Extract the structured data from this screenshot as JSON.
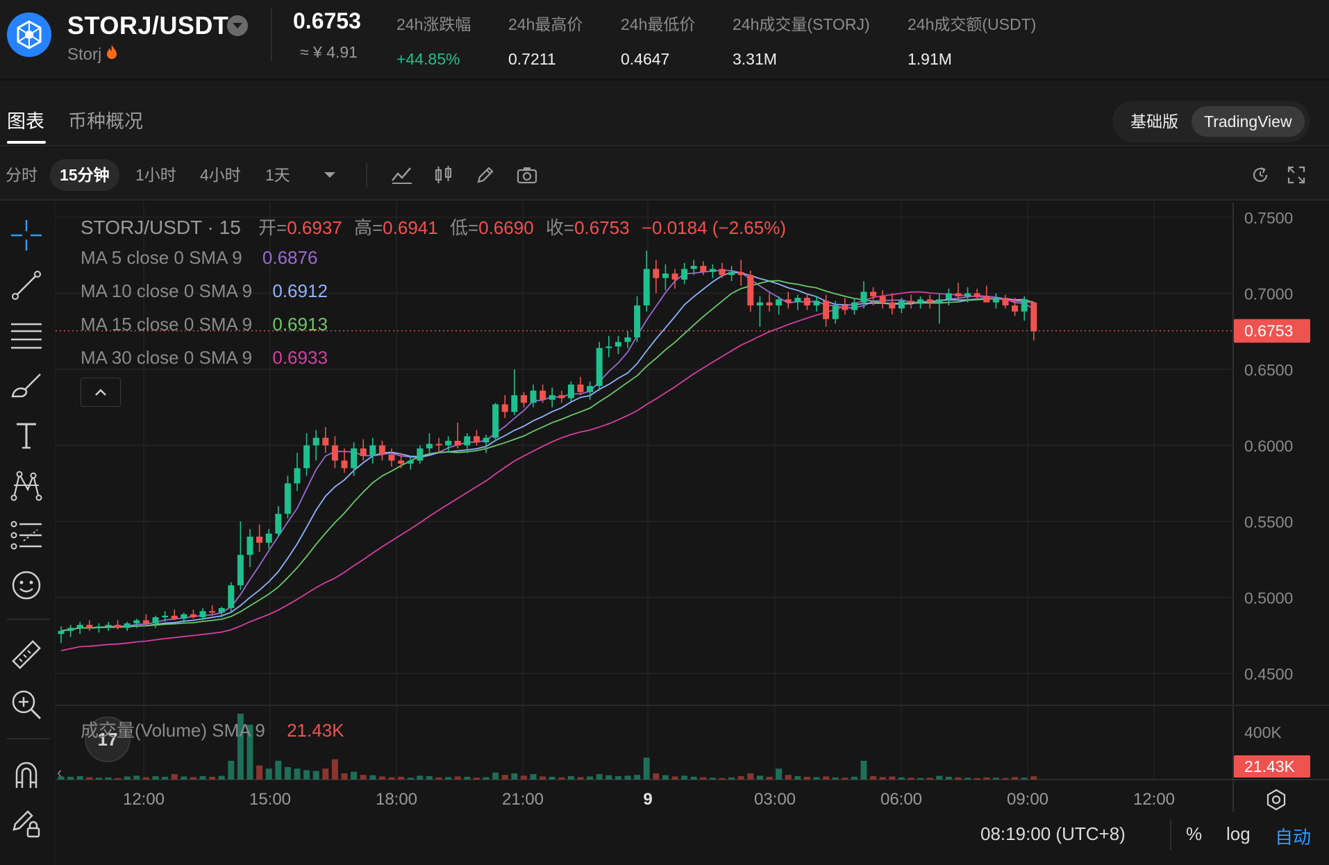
{
  "header": {
    "pair": "STORJ/USDT",
    "coin_name": "Storj",
    "hot_icon": "fire-icon",
    "last_price": "0.6753",
    "last_price_cny": "≈ ¥ 4.91",
    "stats": [
      {
        "label": "24h涨跌幅",
        "value": "+44.85%",
        "color": "#1fc08d"
      },
      {
        "label": "24h最高价",
        "value": "0.7211"
      },
      {
        "label": "24h最低价",
        "value": "0.4647"
      },
      {
        "label": "24h成交量(STORJ)",
        "value": "3.31M"
      },
      {
        "label": "24h成交额(USDT)",
        "value": "1.91M"
      }
    ]
  },
  "tabs": {
    "chart": "图表",
    "overview": "币种概况",
    "mode_basic": "基础版",
    "mode_tv": "TradingView"
  },
  "toolbar": {
    "intervals": [
      "分时",
      "15分钟",
      "1小时",
      "4小时",
      "1天"
    ],
    "active_interval": "15分钟",
    "icons": [
      "indicator-icon",
      "chart-type-icon",
      "draw-icon",
      "camera-icon",
      "refresh-icon",
      "fullscreen-icon"
    ]
  },
  "legend": {
    "symbol": "STORJ/USDT · 15",
    "ohlc_labels": {
      "open": "开=",
      "high": "高=",
      "low": "低=",
      "close": "收="
    },
    "ohlc_values": {
      "open": "0.6937",
      "high": "0.6941",
      "low": "0.6690",
      "close": "0.6753"
    },
    "change": "−0.0184 (−2.65%)",
    "ma": [
      {
        "label": "MA 5 close 0 SMA 9",
        "value": "0.6876",
        "color": "#9a6bd6"
      },
      {
        "label": "MA 10 close 0 SMA 9",
        "value": "0.6912",
        "color": "#8fb4ff"
      },
      {
        "label": "MA 15 close 0 SMA 9",
        "value": "0.6913",
        "color": "#6bc96b"
      },
      {
        "label": "MA 30 close 0 SMA 9",
        "value": "0.6933",
        "color": "#d63fa0"
      }
    ],
    "volume_label": "成交量(Volume) SMA 9",
    "volume_value": "21.43K"
  },
  "bottom": {
    "time": "08:19:00 (UTC+8)",
    "percent": "%",
    "log": "log",
    "auto": "自动"
  },
  "colors": {
    "up": "#26a69a",
    "up_bright": "#1fc08d",
    "down": "#ef5350",
    "bg": "#161616"
  },
  "chart_data": {
    "type": "candlestick",
    "symbol": "STORJ/USDT",
    "interval": "15",
    "ylim": [
      0.43,
      0.76
    ],
    "y_ticks": [
      "0.7500",
      "0.7000",
      "0.6500",
      "0.6000",
      "0.5500",
      "0.5000",
      "0.4500"
    ],
    "x_tick_labels": [
      "12:00",
      "15:00",
      "18:00",
      "21:00",
      "9",
      "03:00",
      "06:00",
      "09:00",
      "12:00"
    ],
    "last_price_label": "0.6753",
    "volume_axis_labels": [
      "400K"
    ],
    "volume_last_label": "21.43K",
    "candles": [
      {
        "o": 0.476,
        "h": 0.481,
        "l": 0.47,
        "c": 0.478,
        "v": 20
      },
      {
        "o": 0.478,
        "h": 0.482,
        "l": 0.474,
        "c": 0.48,
        "v": 18
      },
      {
        "o": 0.48,
        "h": 0.484,
        "l": 0.476,
        "c": 0.482,
        "v": 22
      },
      {
        "o": 0.482,
        "h": 0.485,
        "l": 0.478,
        "c": 0.48,
        "v": 15
      },
      {
        "o": 0.48,
        "h": 0.483,
        "l": 0.477,
        "c": 0.481,
        "v": 12
      },
      {
        "o": 0.481,
        "h": 0.484,
        "l": 0.478,
        "c": 0.482,
        "v": 14
      },
      {
        "o": 0.482,
        "h": 0.485,
        "l": 0.479,
        "c": 0.48,
        "v": 10
      },
      {
        "o": 0.48,
        "h": 0.484,
        "l": 0.478,
        "c": 0.483,
        "v": 20
      },
      {
        "o": 0.483,
        "h": 0.486,
        "l": 0.48,
        "c": 0.485,
        "v": 25
      },
      {
        "o": 0.485,
        "h": 0.489,
        "l": 0.481,
        "c": 0.483,
        "v": 15
      },
      {
        "o": 0.483,
        "h": 0.488,
        "l": 0.48,
        "c": 0.487,
        "v": 22
      },
      {
        "o": 0.487,
        "h": 0.491,
        "l": 0.484,
        "c": 0.488,
        "v": 18
      },
      {
        "o": 0.488,
        "h": 0.492,
        "l": 0.485,
        "c": 0.486,
        "v": 35
      },
      {
        "o": 0.486,
        "h": 0.49,
        "l": 0.483,
        "c": 0.489,
        "v": 20
      },
      {
        "o": 0.489,
        "h": 0.492,
        "l": 0.486,
        "c": 0.487,
        "v": 16
      },
      {
        "o": 0.487,
        "h": 0.493,
        "l": 0.485,
        "c": 0.491,
        "v": 22
      },
      {
        "o": 0.491,
        "h": 0.495,
        "l": 0.488,
        "c": 0.49,
        "v": 18
      },
      {
        "o": 0.49,
        "h": 0.494,
        "l": 0.487,
        "c": 0.493,
        "v": 24
      },
      {
        "o": 0.493,
        "h": 0.51,
        "l": 0.49,
        "c": 0.508,
        "v": 120
      },
      {
        "o": 0.508,
        "h": 0.55,
        "l": 0.505,
        "c": 0.528,
        "v": 420
      },
      {
        "o": 0.528,
        "h": 0.545,
        "l": 0.52,
        "c": 0.54,
        "v": 350
      },
      {
        "o": 0.54,
        "h": 0.548,
        "l": 0.53,
        "c": 0.536,
        "v": 90
      },
      {
        "o": 0.536,
        "h": 0.545,
        "l": 0.532,
        "c": 0.542,
        "v": 70
      },
      {
        "o": 0.542,
        "h": 0.56,
        "l": 0.54,
        "c": 0.555,
        "v": 120
      },
      {
        "o": 0.555,
        "h": 0.58,
        "l": 0.552,
        "c": 0.575,
        "v": 80
      },
      {
        "o": 0.575,
        "h": 0.595,
        "l": 0.57,
        "c": 0.585,
        "v": 70
      },
      {
        "o": 0.585,
        "h": 0.608,
        "l": 0.58,
        "c": 0.6,
        "v": 60
      },
      {
        "o": 0.6,
        "h": 0.61,
        "l": 0.59,
        "c": 0.605,
        "v": 55
      },
      {
        "o": 0.605,
        "h": 0.612,
        "l": 0.595,
        "c": 0.6,
        "v": 70
      },
      {
        "o": 0.6,
        "h": 0.606,
        "l": 0.585,
        "c": 0.59,
        "v": 130
      },
      {
        "o": 0.59,
        "h": 0.598,
        "l": 0.582,
        "c": 0.585,
        "v": 40
      },
      {
        "o": 0.585,
        "h": 0.602,
        "l": 0.58,
        "c": 0.598,
        "v": 50
      },
      {
        "o": 0.598,
        "h": 0.604,
        "l": 0.59,
        "c": 0.593,
        "v": 30
      },
      {
        "o": 0.593,
        "h": 0.605,
        "l": 0.588,
        "c": 0.6,
        "v": 28
      },
      {
        "o": 0.6,
        "h": 0.603,
        "l": 0.59,
        "c": 0.594,
        "v": 20
      },
      {
        "o": 0.594,
        "h": 0.598,
        "l": 0.586,
        "c": 0.59,
        "v": 15
      },
      {
        "o": 0.59,
        "h": 0.595,
        "l": 0.585,
        "c": 0.588,
        "v": 18
      },
      {
        "o": 0.588,
        "h": 0.593,
        "l": 0.584,
        "c": 0.59,
        "v": 12
      },
      {
        "o": 0.59,
        "h": 0.6,
        "l": 0.588,
        "c": 0.598,
        "v": 25
      },
      {
        "o": 0.598,
        "h": 0.608,
        "l": 0.594,
        "c": 0.601,
        "v": 22
      },
      {
        "o": 0.601,
        "h": 0.605,
        "l": 0.595,
        "c": 0.6,
        "v": 14
      },
      {
        "o": 0.6,
        "h": 0.606,
        "l": 0.596,
        "c": 0.603,
        "v": 16
      },
      {
        "o": 0.603,
        "h": 0.615,
        "l": 0.598,
        "c": 0.6,
        "v": 20
      },
      {
        "o": 0.6,
        "h": 0.608,
        "l": 0.595,
        "c": 0.606,
        "v": 18
      },
      {
        "o": 0.606,
        "h": 0.61,
        "l": 0.6,
        "c": 0.602,
        "v": 12
      },
      {
        "o": 0.602,
        "h": 0.607,
        "l": 0.595,
        "c": 0.605,
        "v": 15
      },
      {
        "o": 0.605,
        "h": 0.628,
        "l": 0.603,
        "c": 0.627,
        "v": 45
      },
      {
        "o": 0.627,
        "h": 0.633,
        "l": 0.618,
        "c": 0.622,
        "v": 30
      },
      {
        "o": 0.622,
        "h": 0.65,
        "l": 0.62,
        "c": 0.633,
        "v": 40
      },
      {
        "o": 0.633,
        "h": 0.635,
        "l": 0.625,
        "c": 0.628,
        "v": 25
      },
      {
        "o": 0.628,
        "h": 0.64,
        "l": 0.625,
        "c": 0.636,
        "v": 35
      },
      {
        "o": 0.636,
        "h": 0.64,
        "l": 0.628,
        "c": 0.63,
        "v": 20
      },
      {
        "o": 0.63,
        "h": 0.638,
        "l": 0.625,
        "c": 0.633,
        "v": 18
      },
      {
        "o": 0.633,
        "h": 0.636,
        "l": 0.628,
        "c": 0.631,
        "v": 14
      },
      {
        "o": 0.631,
        "h": 0.642,
        "l": 0.629,
        "c": 0.64,
        "v": 22
      },
      {
        "o": 0.64,
        "h": 0.645,
        "l": 0.633,
        "c": 0.635,
        "v": 16
      },
      {
        "o": 0.635,
        "h": 0.642,
        "l": 0.63,
        "c": 0.639,
        "v": 20
      },
      {
        "o": 0.639,
        "h": 0.668,
        "l": 0.636,
        "c": 0.664,
        "v": 35
      },
      {
        "o": 0.664,
        "h": 0.672,
        "l": 0.658,
        "c": 0.665,
        "v": 28
      },
      {
        "o": 0.665,
        "h": 0.672,
        "l": 0.66,
        "c": 0.668,
        "v": 22
      },
      {
        "o": 0.668,
        "h": 0.675,
        "l": 0.664,
        "c": 0.671,
        "v": 25
      },
      {
        "o": 0.671,
        "h": 0.698,
        "l": 0.668,
        "c": 0.692,
        "v": 30
      },
      {
        "o": 0.692,
        "h": 0.728,
        "l": 0.688,
        "c": 0.716,
        "v": 140
      },
      {
        "o": 0.716,
        "h": 0.722,
        "l": 0.7,
        "c": 0.71,
        "v": 40
      },
      {
        "o": 0.71,
        "h": 0.719,
        "l": 0.702,
        "c": 0.713,
        "v": 28
      },
      {
        "o": 0.713,
        "h": 0.716,
        "l": 0.703,
        "c": 0.709,
        "v": 20
      },
      {
        "o": 0.709,
        "h": 0.72,
        "l": 0.706,
        "c": 0.716,
        "v": 25
      },
      {
        "o": 0.716,
        "h": 0.722,
        "l": 0.712,
        "c": 0.718,
        "v": 18
      },
      {
        "o": 0.718,
        "h": 0.721,
        "l": 0.712,
        "c": 0.714,
        "v": 15
      },
      {
        "o": 0.714,
        "h": 0.719,
        "l": 0.71,
        "c": 0.716,
        "v": 12
      },
      {
        "o": 0.716,
        "h": 0.72,
        "l": 0.71,
        "c": 0.712,
        "v": 10
      },
      {
        "o": 0.712,
        "h": 0.718,
        "l": 0.708,
        "c": 0.714,
        "v": 14
      },
      {
        "o": 0.714,
        "h": 0.722,
        "l": 0.705,
        "c": 0.712,
        "v": 22
      },
      {
        "o": 0.712,
        "h": 0.715,
        "l": 0.688,
        "c": 0.692,
        "v": 40
      },
      {
        "o": 0.692,
        "h": 0.698,
        "l": 0.678,
        "c": 0.694,
        "v": 25
      },
      {
        "o": 0.694,
        "h": 0.7,
        "l": 0.688,
        "c": 0.692,
        "v": 18
      },
      {
        "o": 0.692,
        "h": 0.698,
        "l": 0.686,
        "c": 0.696,
        "v": 70
      },
      {
        "o": 0.696,
        "h": 0.701,
        "l": 0.69,
        "c": 0.694,
        "v": 30
      },
      {
        "o": 0.694,
        "h": 0.699,
        "l": 0.689,
        "c": 0.697,
        "v": 22
      },
      {
        "o": 0.697,
        "h": 0.7,
        "l": 0.689,
        "c": 0.692,
        "v": 18
      },
      {
        "o": 0.692,
        "h": 0.698,
        "l": 0.688,
        "c": 0.695,
        "v": 16
      },
      {
        "o": 0.695,
        "h": 0.699,
        "l": 0.678,
        "c": 0.683,
        "v": 20
      },
      {
        "o": 0.683,
        "h": 0.695,
        "l": 0.68,
        "c": 0.692,
        "v": 14
      },
      {
        "o": 0.692,
        "h": 0.697,
        "l": 0.686,
        "c": 0.689,
        "v": 12
      },
      {
        "o": 0.689,
        "h": 0.697,
        "l": 0.686,
        "c": 0.694,
        "v": 18
      },
      {
        "o": 0.694,
        "h": 0.708,
        "l": 0.69,
        "c": 0.701,
        "v": 120
      },
      {
        "o": 0.701,
        "h": 0.704,
        "l": 0.692,
        "c": 0.698,
        "v": 22
      },
      {
        "o": 0.698,
        "h": 0.702,
        "l": 0.69,
        "c": 0.694,
        "v": 16
      },
      {
        "o": 0.694,
        "h": 0.7,
        "l": 0.686,
        "c": 0.69,
        "v": 20
      },
      {
        "o": 0.69,
        "h": 0.697,
        "l": 0.687,
        "c": 0.695,
        "v": 14
      },
      {
        "o": 0.695,
        "h": 0.699,
        "l": 0.69,
        "c": 0.694,
        "v": 12
      },
      {
        "o": 0.694,
        "h": 0.698,
        "l": 0.69,
        "c": 0.696,
        "v": 10
      },
      {
        "o": 0.696,
        "h": 0.699,
        "l": 0.69,
        "c": 0.694,
        "v": 12
      },
      {
        "o": 0.694,
        "h": 0.7,
        "l": 0.68,
        "c": 0.696,
        "v": 24
      },
      {
        "o": 0.696,
        "h": 0.703,
        "l": 0.692,
        "c": 0.7,
        "v": 18
      },
      {
        "o": 0.7,
        "h": 0.707,
        "l": 0.696,
        "c": 0.698,
        "v": 14
      },
      {
        "o": 0.698,
        "h": 0.704,
        "l": 0.694,
        "c": 0.7,
        "v": 12
      },
      {
        "o": 0.7,
        "h": 0.703,
        "l": 0.696,
        "c": 0.698,
        "v": 10
      },
      {
        "o": 0.698,
        "h": 0.705,
        "l": 0.694,
        "c": 0.694,
        "v": 14
      },
      {
        "o": 0.694,
        "h": 0.7,
        "l": 0.69,
        "c": 0.697,
        "v": 12
      },
      {
        "o": 0.697,
        "h": 0.699,
        "l": 0.69,
        "c": 0.692,
        "v": 10
      },
      {
        "o": 0.692,
        "h": 0.697,
        "l": 0.685,
        "c": 0.688,
        "v": 16
      },
      {
        "o": 0.688,
        "h": 0.698,
        "l": 0.682,
        "c": 0.696,
        "v": 12
      },
      {
        "o": 0.694,
        "h": 0.694,
        "l": 0.669,
        "c": 0.675,
        "v": 21
      }
    ],
    "ma_series": [
      {
        "name": "MA 5",
        "period": 5,
        "color": "#9a6bd6"
      },
      {
        "name": "MA 10",
        "period": 10,
        "color": "#8fb4ff"
      },
      {
        "name": "MA 15",
        "period": 15,
        "color": "#6bc96b"
      },
      {
        "name": "MA 30",
        "period": 30,
        "color": "#d63fa0"
      }
    ],
    "grid": true,
    "legend_position": "top-left"
  }
}
